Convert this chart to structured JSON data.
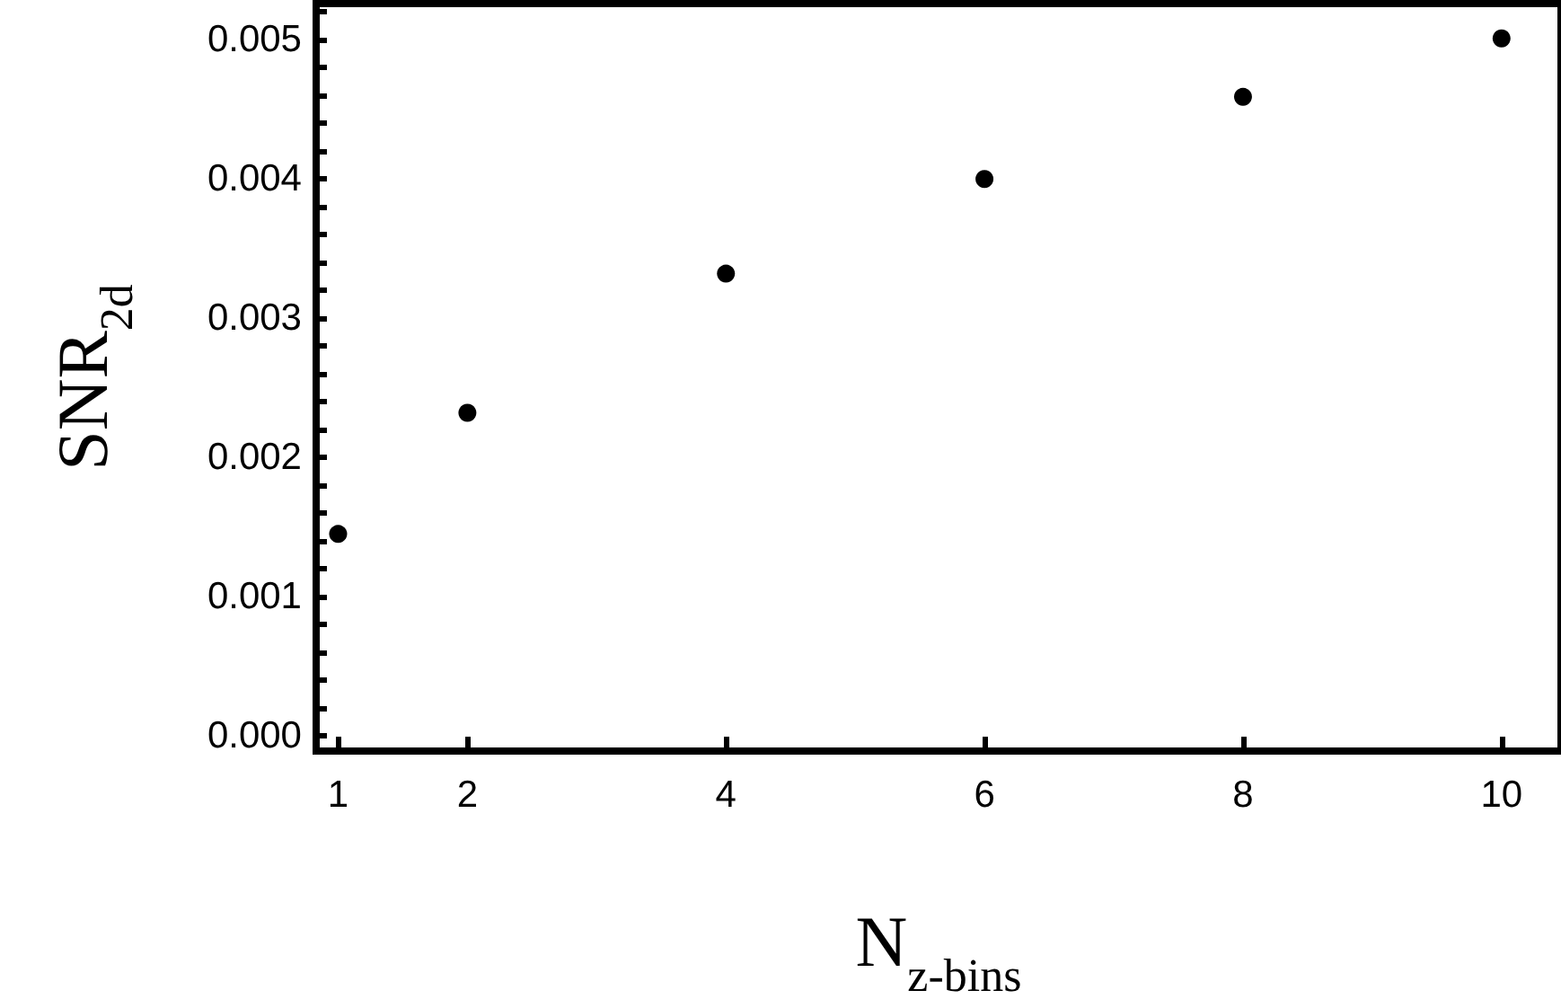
{
  "chart_data": {
    "type": "scatter",
    "xlabel": "N$_{z-bins}$",
    "ylabel": "SNR$_{2d}$",
    "x": [
      1,
      2,
      4,
      6,
      8,
      10
    ],
    "series": [
      {
        "color": "#000000",
        "values": [
          0.00145,
          0.00232,
          0.00332,
          0.004,
          0.00459,
          0.00501
        ]
      }
    ],
    "marker": "circle",
    "grid": false,
    "xlim": [
      0.83,
      10.46
    ],
    "xticks": [
      1,
      2,
      4,
      6,
      8,
      10
    ],
    "ylim": [
      -0.00011,
      0.00526
    ],
    "yticks": [
      {
        "value": 0,
        "label": "0.000"
      },
      {
        "value": 0.0002,
        "label": null
      },
      {
        "value": 0.0004,
        "label": null
      },
      {
        "value": 0.0006,
        "label": null
      },
      {
        "value": 0.0008,
        "label": null
      },
      {
        "value": 0.001,
        "label": "0.001"
      },
      {
        "value": 0.0012,
        "label": null
      },
      {
        "value": 0.0014,
        "label": null
      },
      {
        "value": 0.0016,
        "label": null
      },
      {
        "value": 0.0018,
        "label": null
      },
      {
        "value": 0.002,
        "label": "0.002"
      },
      {
        "value": 0.0022,
        "label": null
      },
      {
        "value": 0.0024,
        "label": null
      },
      {
        "value": 0.0026,
        "label": null
      },
      {
        "value": 0.0028,
        "label": null
      },
      {
        "value": 0.003,
        "label": "0.003"
      },
      {
        "value": 0.0032,
        "label": null
      },
      {
        "value": 0.0034,
        "label": null
      },
      {
        "value": 0.0036,
        "label": null
      },
      {
        "value": 0.0038,
        "label": null
      },
      {
        "value": 0.004,
        "label": "0.004"
      },
      {
        "value": 0.0042,
        "label": null
      },
      {
        "value": 0.0044,
        "label": null
      },
      {
        "value": 0.0046,
        "label": null
      },
      {
        "value": 0.0048,
        "label": null
      },
      {
        "value": 0.005,
        "label": "0.005"
      },
      {
        "value": 0.0052,
        "label": null
      }
    ]
  }
}
